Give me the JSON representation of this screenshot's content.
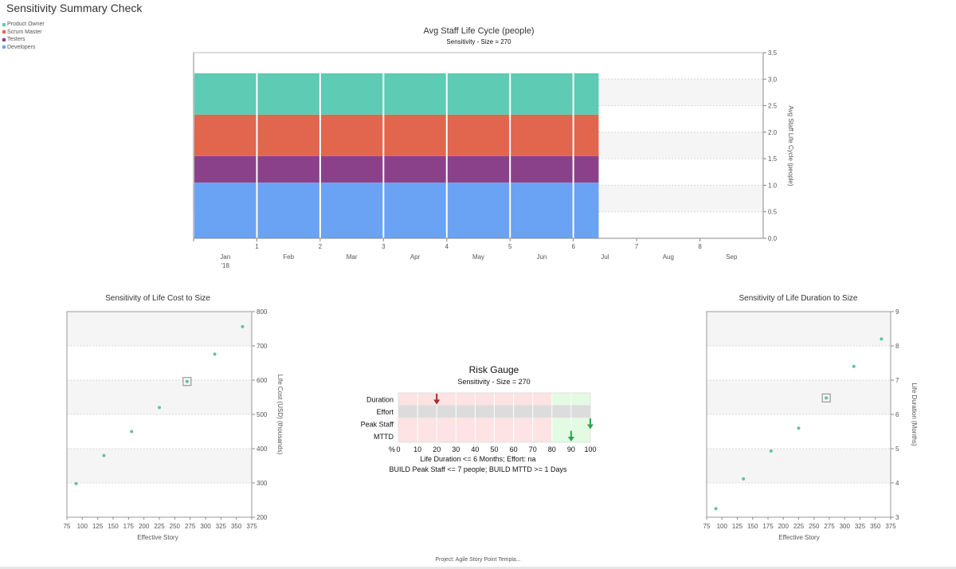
{
  "page_title": "Sensitivity Summary Check",
  "footer": "Project: Agile Story Point Templa...",
  "chart_data": [
    {
      "type": "area",
      "title": "Avg Staff Life Cycle (people)",
      "subtitle": "Sensitivity - Size = 270",
      "ylabel": "Avg Staff Life Cycle (people)",
      "ylim": [
        0,
        3.5
      ],
      "yticks": [
        0,
        0.5,
        1.0,
        1.5,
        2.0,
        2.5,
        3.0,
        3.5
      ],
      "ytick_labels": [
        "0.0",
        "0.5",
        "1.0",
        "1.5",
        "2.0",
        "2.5",
        "3.0",
        "3.5"
      ],
      "xlim": [
        0,
        9
      ],
      "x_period_ticks": [
        1,
        2,
        3,
        4,
        5,
        6,
        7,
        8
      ],
      "month_labels": [
        "Jan",
        "Feb",
        "Mar",
        "Apr",
        "May",
        "Jun",
        "Jul",
        "Aug",
        "Sep"
      ],
      "year_label": "'18",
      "stack_end": 6.4,
      "series": [
        {
          "name": "Developers",
          "color": "#6aa2f4",
          "value": 1.05
        },
        {
          "name": "Testers",
          "color": "#8b4189",
          "value": 0.5
        },
        {
          "name": "Scrum Master",
          "color": "#e2654d",
          "value": 0.78
        },
        {
          "name": "Product Owner",
          "color": "#5ecbb4",
          "value": 0.78
        }
      ]
    },
    {
      "type": "scatter",
      "title": "Sensitivity of Life Cost to Size",
      "xlabel": "Effective Story",
      "ylabel": "Life Cost (USD) (thousands)",
      "xlim": [
        75,
        375
      ],
      "xticks": [
        75,
        100,
        125,
        150,
        175,
        200,
        225,
        250,
        275,
        300,
        325,
        350,
        375
      ],
      "ylim": [
        200,
        800
      ],
      "yticks": [
        200,
        300,
        400,
        500,
        600,
        700,
        800
      ],
      "points": [
        [
          90,
          298
        ],
        [
          135,
          380
        ],
        [
          180,
          450
        ],
        [
          225,
          520
        ],
        [
          270,
          596
        ],
        [
          315,
          676
        ],
        [
          360,
          756
        ]
      ],
      "highlight": [
        270,
        596
      ],
      "point_color": "#5ec49b"
    },
    {
      "type": "scatter",
      "title": "Sensitivity of Life Duration to Size",
      "xlabel": "Effective Story",
      "ylabel": "Life Duration (Months)",
      "xlim": [
        75,
        375
      ],
      "xticks": [
        75,
        100,
        125,
        150,
        175,
        200,
        225,
        250,
        275,
        300,
        325,
        350,
        375
      ],
      "ylim": [
        3,
        9
      ],
      "yticks": [
        3,
        4,
        5,
        6,
        7,
        8,
        9
      ],
      "points": [
        [
          90,
          3.25
        ],
        [
          135,
          4.12
        ],
        [
          180,
          4.93
        ],
        [
          225,
          5.6
        ],
        [
          270,
          6.48
        ],
        [
          315,
          7.4
        ],
        [
          360,
          8.2
        ]
      ],
      "highlight": [
        270,
        6.48
      ],
      "point_color": "#5ec49b"
    }
  ],
  "risk_gauge": {
    "title": "Risk Gauge",
    "subtitle": "Sensitivity - Size = 270",
    "percent_label": "%",
    "xticks": [
      0,
      10,
      20,
      30,
      40,
      50,
      60,
      70,
      80,
      90,
      100
    ],
    "rows": [
      {
        "label": "Duration",
        "state": "split",
        "green_from": 80,
        "marker": 20,
        "marker_color": "#a52a2a"
      },
      {
        "label": "Effort",
        "state": "na"
      },
      {
        "label": "Peak Staff",
        "state": "split",
        "green_from": 80,
        "marker": 100,
        "marker_color": "#2ea44f"
      },
      {
        "label": "MTTD",
        "state": "split",
        "green_from": 80,
        "marker": 90,
        "marker_color": "#2ea44f"
      }
    ],
    "note_line1": "Life Duration  <= 6 Months;  Effort:  na",
    "note_line2": "BUILD Peak Staff  <= 7 people;  BUILD MTTD  >= 1 Days"
  }
}
